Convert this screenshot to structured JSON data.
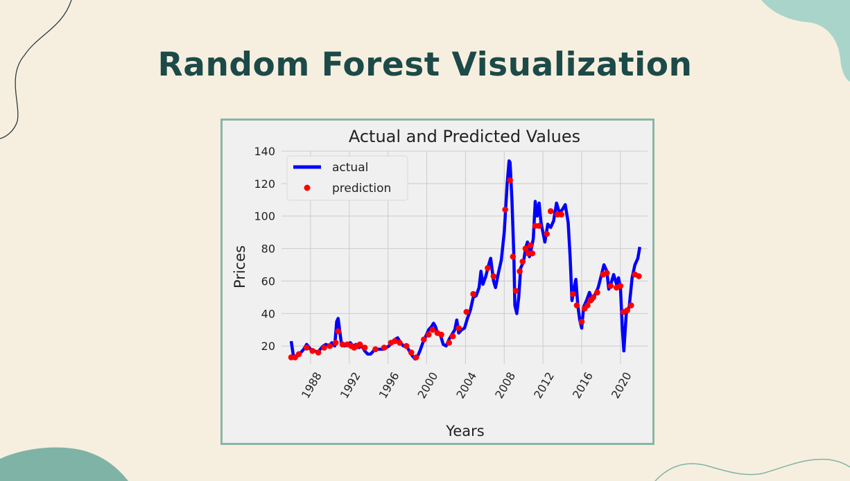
{
  "slide": {
    "title": "Random Forest Visualization"
  },
  "colors": {
    "background": "#f6efdf",
    "title": "#1c4a48",
    "frame": "#89b5a6",
    "actual": "#0000ff",
    "prediction": "#ff0000"
  },
  "chart_data": {
    "type": "line",
    "title": "Actual and Predicted Values",
    "xlabel": "Years",
    "ylabel": "Prices",
    "xlim": [
      1985.0,
      2022.8
    ],
    "ylim": [
      9,
      140
    ],
    "xticks": [
      1988,
      1992,
      1996,
      2000,
      2004,
      2008,
      2012,
      2016,
      2020
    ],
    "xtick_rotation": 60,
    "yticks": [
      20,
      40,
      60,
      80,
      100,
      120,
      140
    ],
    "grid": true,
    "legend": {
      "position": "top-left",
      "entries": [
        "actual",
        "prediction"
      ]
    },
    "series": [
      {
        "name": "actual",
        "style": "line",
        "color": "#0000ff",
        "points": [
          [
            1986.0,
            23
          ],
          [
            1986.2,
            15
          ],
          [
            1986.4,
            13
          ],
          [
            1986.7,
            14
          ],
          [
            1987.0,
            16
          ],
          [
            1987.3,
            18
          ],
          [
            1987.6,
            21
          ],
          [
            1988.0,
            18
          ],
          [
            1988.4,
            17
          ],
          [
            1988.8,
            16
          ],
          [
            1989.0,
            18
          ],
          [
            1989.3,
            20
          ],
          [
            1989.6,
            21
          ],
          [
            1989.9,
            20
          ],
          [
            1990.2,
            22
          ],
          [
            1990.5,
            20
          ],
          [
            1990.7,
            35
          ],
          [
            1990.85,
            37
          ],
          [
            1991.0,
            30
          ],
          [
            1991.2,
            21
          ],
          [
            1991.5,
            20
          ],
          [
            1991.8,
            21
          ],
          [
            1992.1,
            22
          ],
          [
            1992.4,
            20
          ],
          [
            1992.7,
            21
          ],
          [
            1993.0,
            19
          ],
          [
            1993.3,
            20
          ],
          [
            1993.6,
            17
          ],
          [
            1993.9,
            15
          ],
          [
            1994.2,
            15
          ],
          [
            1994.5,
            17
          ],
          [
            1994.8,
            18
          ],
          [
            1995.1,
            18
          ],
          [
            1995.5,
            18
          ],
          [
            1995.8,
            19
          ],
          [
            1996.1,
            20
          ],
          [
            1996.4,
            22
          ],
          [
            1996.7,
            24
          ],
          [
            1997.0,
            25
          ],
          [
            1997.3,
            22
          ],
          [
            1997.6,
            20
          ],
          [
            1997.9,
            20
          ],
          [
            1998.2,
            17
          ],
          [
            1998.5,
            14
          ],
          [
            1998.8,
            12
          ],
          [
            1999.0,
            13
          ],
          [
            1999.3,
            17
          ],
          [
            1999.6,
            22
          ],
          [
            1999.9,
            26
          ],
          [
            2000.2,
            30
          ],
          [
            2000.5,
            32
          ],
          [
            2000.7,
            34
          ],
          [
            2000.9,
            32
          ],
          [
            2001.1,
            28
          ],
          [
            2001.4,
            27
          ],
          [
            2001.7,
            21
          ],
          [
            2002.0,
            20
          ],
          [
            2002.3,
            24
          ],
          [
            2002.6,
            27
          ],
          [
            2002.9,
            30
          ],
          [
            2003.1,
            36
          ],
          [
            2003.3,
            28
          ],
          [
            2003.6,
            30
          ],
          [
            2003.9,
            31
          ],
          [
            2004.2,
            37
          ],
          [
            2004.5,
            42
          ],
          [
            2004.8,
            50
          ],
          [
            2005.1,
            51
          ],
          [
            2005.4,
            56
          ],
          [
            2005.6,
            66
          ],
          [
            2005.8,
            58
          ],
          [
            2006.1,
            63
          ],
          [
            2006.4,
            70
          ],
          [
            2006.6,
            74
          ],
          [
            2006.9,
            60
          ],
          [
            2007.1,
            56
          ],
          [
            2007.4,
            65
          ],
          [
            2007.7,
            73
          ],
          [
            2008.0,
            90
          ],
          [
            2008.3,
            120
          ],
          [
            2008.5,
            134
          ],
          [
            2008.6,
            133
          ],
          [
            2008.8,
            110
          ],
          [
            2009.0,
            75
          ],
          [
            2009.1,
            45
          ],
          [
            2009.3,
            40
          ],
          [
            2009.5,
            50
          ],
          [
            2009.7,
            68
          ],
          [
            2010.0,
            72
          ],
          [
            2010.2,
            80
          ],
          [
            2010.4,
            84
          ],
          [
            2010.6,
            75
          ],
          [
            2010.8,
            80
          ],
          [
            2011.0,
            86
          ],
          [
            2011.2,
            109
          ],
          [
            2011.4,
            100
          ],
          [
            2011.6,
            108
          ],
          [
            2011.8,
            96
          ],
          [
            2012.0,
            90
          ],
          [
            2012.2,
            84
          ],
          [
            2012.5,
            95
          ],
          [
            2012.8,
            93
          ],
          [
            2013.1,
            97
          ],
          [
            2013.4,
            108
          ],
          [
            2013.7,
            102
          ],
          [
            2014.0,
            104
          ],
          [
            2014.3,
            107
          ],
          [
            2014.6,
            96
          ],
          [
            2014.8,
            75
          ],
          [
            2015.0,
            48
          ],
          [
            2015.2,
            55
          ],
          [
            2015.4,
            61
          ],
          [
            2015.6,
            45
          ],
          [
            2015.8,
            36
          ],
          [
            2016.0,
            31
          ],
          [
            2016.2,
            44
          ],
          [
            2016.5,
            48
          ],
          [
            2016.8,
            53
          ],
          [
            2017.1,
            48
          ],
          [
            2017.4,
            52
          ],
          [
            2017.7,
            56
          ],
          [
            2018.0,
            63
          ],
          [
            2018.3,
            70
          ],
          [
            2018.6,
            66
          ],
          [
            2018.8,
            55
          ],
          [
            2019.0,
            58
          ],
          [
            2019.3,
            64
          ],
          [
            2019.6,
            58
          ],
          [
            2019.8,
            62
          ],
          [
            2020.0,
            56
          ],
          [
            2020.2,
            30
          ],
          [
            2020.35,
            17
          ],
          [
            2020.6,
            40
          ],
          [
            2020.9,
            44
          ],
          [
            2021.2,
            62
          ],
          [
            2021.5,
            70
          ],
          [
            2021.8,
            74
          ],
          [
            2022.0,
            81
          ]
        ]
      },
      {
        "name": "prediction",
        "style": "markers",
        "color": "#ff0000",
        "points": [
          [
            1986.0,
            13
          ],
          [
            1986.4,
            13
          ],
          [
            1986.8,
            15
          ],
          [
            1987.6,
            19
          ],
          [
            1988.2,
            17
          ],
          [
            1988.8,
            16
          ],
          [
            1989.4,
            19
          ],
          [
            1990.0,
            20
          ],
          [
            1990.6,
            22
          ],
          [
            1990.85,
            29
          ],
          [
            1991.3,
            21
          ],
          [
            1991.8,
            21
          ],
          [
            1992.2,
            20
          ],
          [
            1992.5,
            19
          ],
          [
            1992.8,
            20
          ],
          [
            1993.1,
            21
          ],
          [
            1993.6,
            19
          ],
          [
            1994.7,
            18
          ],
          [
            1995.6,
            19
          ],
          [
            1996.3,
            22
          ],
          [
            1996.7,
            23
          ],
          [
            1997.2,
            22
          ],
          [
            1997.9,
            20
          ],
          [
            1998.4,
            16
          ],
          [
            1998.9,
            13
          ],
          [
            1999.7,
            24
          ],
          [
            2000.2,
            27
          ],
          [
            2000.6,
            30
          ],
          [
            2001.1,
            28
          ],
          [
            2001.5,
            27
          ],
          [
            2002.3,
            22
          ],
          [
            2002.7,
            26
          ],
          [
            2003.3,
            31
          ],
          [
            2004.1,
            41
          ],
          [
            2004.8,
            52
          ],
          [
            2006.3,
            68
          ],
          [
            2006.9,
            63
          ],
          [
            2008.1,
            104
          ],
          [
            2008.6,
            122
          ],
          [
            2008.9,
            75
          ],
          [
            2009.2,
            54
          ],
          [
            2009.6,
            66
          ],
          [
            2009.9,
            72
          ],
          [
            2010.2,
            80
          ],
          [
            2010.5,
            77
          ],
          [
            2010.7,
            82
          ],
          [
            2010.9,
            77
          ],
          [
            2011.2,
            94
          ],
          [
            2011.6,
            94
          ],
          [
            2012.4,
            89
          ],
          [
            2012.8,
            103
          ],
          [
            2013.5,
            101
          ],
          [
            2013.9,
            101
          ],
          [
            2015.1,
            52
          ],
          [
            2015.5,
            45
          ],
          [
            2016.0,
            35
          ],
          [
            2016.3,
            43
          ],
          [
            2016.6,
            45
          ],
          [
            2016.9,
            48
          ],
          [
            2017.2,
            50
          ],
          [
            2017.6,
            53
          ],
          [
            2018.2,
            64
          ],
          [
            2018.6,
            65
          ],
          [
            2019.0,
            57
          ],
          [
            2019.6,
            56
          ],
          [
            2020.0,
            57
          ],
          [
            2020.3,
            41
          ],
          [
            2020.7,
            42
          ],
          [
            2021.1,
            45
          ],
          [
            2021.5,
            64
          ],
          [
            2021.9,
            63
          ]
        ]
      }
    ]
  }
}
